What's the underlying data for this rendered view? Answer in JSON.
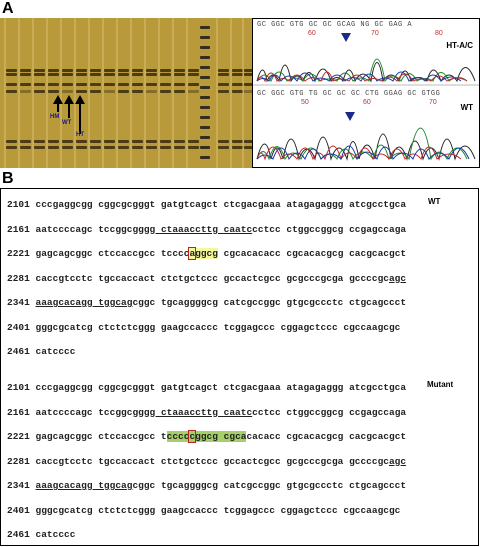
{
  "panel_a": {
    "letter": "A",
    "gel": {
      "labels": [
        "HM",
        "WT",
        "HT"
      ]
    },
    "chromatogram": {
      "top": {
        "sequence": "GC GGC GTG GC GC GCAG NG GC GAG A",
        "numbers": [
          "60",
          "70",
          "80"
        ],
        "label": "HT-A/C"
      },
      "bottom": {
        "sequence": "GC GGC GTG TG GC GC GC CTG GGAG GC GTGG",
        "numbers": [
          "50",
          "60",
          "70"
        ],
        "label": "WT"
      }
    }
  },
  "panel_b": {
    "letter": "B",
    "wt": {
      "label": "WT",
      "lines": [
        {
          "pos": "2101",
          "segments": [
            {
              "t": "cccgaggcgg cggcgcgggt gatgtcagct ctcgacgaaa atagagaggg atcgcctgca"
            }
          ]
        },
        {
          "pos": "2161",
          "segments": [
            {
              "t": "aatccccagc tccggc"
            },
            {
              "t": "gggg ctaaaccttg caatc",
              "u": true
            },
            {
              "t": "cctcc ctggccggcg ccgagccaga"
            }
          ]
        },
        {
          "pos": "2221",
          "segments": [
            {
              "t": "gagcagcggc ctccaccgcc tcccc"
            },
            {
              "t": "a",
              "hl": "yellow",
              "box": true
            },
            {
              "t": "ggcg",
              "hl": "yellow"
            },
            {
              "t": " cgcacacacc cgcacacgcg cacgcacgct"
            }
          ]
        },
        {
          "pos": "2281",
          "segments": [
            {
              "t": "caccgtcctc tgccaccact ctctgctccc gccactcgcc gcgcccgcga gccccgc"
            },
            {
              "t": "agc",
              "u": true
            }
          ]
        },
        {
          "pos": "2341",
          "segments": [
            {
              "t": "aaagcacagg tggcag",
              "u": true
            },
            {
              "t": "cggc tgcaggggcg catcgccggc gtgcgccctc ctgcagccct"
            }
          ]
        },
        {
          "pos": "2401",
          "segments": [
            {
              "t": "gggcgcatcg ctctctcggg gaagccaccc tcggagccc cggagctccc cgccaagcgc"
            }
          ]
        },
        {
          "pos": "2461",
          "segments": [
            {
              "t": "catcccc"
            }
          ]
        }
      ]
    },
    "mutant": {
      "label": "Mutant",
      "lines": [
        {
          "pos": "2101",
          "segments": [
            {
              "t": "cccgaggcgg cggcgcgggt gatgtcagct ctcgacgaaa atagagaggg atcgcctgca"
            }
          ]
        },
        {
          "pos": "2161",
          "segments": [
            {
              "t": "aatccccagc tccggc"
            },
            {
              "t": "gggg ctaaaccttg caatc",
              "u": true
            },
            {
              "t": "cctcc ctggccggcg ccgagccaga"
            }
          ]
        },
        {
          "pos": "2221",
          "segments": [
            {
              "t": "gagcagcggc ctccaccgcc t"
            },
            {
              "t": "cccc",
              "hl": "green"
            },
            {
              "t": "c",
              "hl": "green",
              "box": true
            },
            {
              "t": "ggcg cgca",
              "hl": "green"
            },
            {
              "t": "cacacc cgcacacgcg cacgcacgct"
            }
          ]
        },
        {
          "pos": "2281",
          "segments": [
            {
              "t": "caccgtcctc tgccaccact ctctgctccc gccactcgcc gcgcccgcga gccccgc"
            },
            {
              "t": "agc",
              "u": true
            }
          ]
        },
        {
          "pos": "2341",
          "segments": [
            {
              "t": "aaagcacagg tggcag",
              "u": true
            },
            {
              "t": "cggc tgcaggggcg catcgccggc gtgcgccctc ctgcagccct"
            }
          ]
        },
        {
          "pos": "2401",
          "segments": [
            {
              "t": "gggcgcatcg ctctctcggg gaagccaccc tcggagccc cggagctccc cgccaagcgc"
            }
          ]
        },
        {
          "pos": "2461",
          "segments": [
            {
              "t": "catcccc"
            }
          ]
        }
      ]
    }
  }
}
